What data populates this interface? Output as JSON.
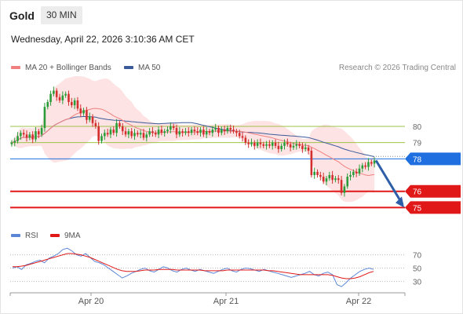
{
  "header": {
    "asset": "Gold",
    "timeframe": "30 MIN",
    "timestamp": "Wednesday, April 22, 2026 3:10:36 AM CET"
  },
  "legend": {
    "ma20_label": "MA 20 + Bollinger Bands",
    "ma50_label": "MA 50",
    "credit": "Research © 2026 Trading Central",
    "rsi_label": "RSI",
    "rsi_ma_label": "9MA"
  },
  "colors": {
    "candle_up": "#2a9d3a",
    "candle_down": "#d32f2f",
    "ma20": "#f08080",
    "bollinger_fill": "#fde0e0",
    "ma50": "#3a5a9a",
    "pivot": "#1f6fe0",
    "support": "#e01818",
    "resistance": "#9fc24a",
    "arrow": "#2e5ea8",
    "rsi": "#5b86d6",
    "rsi_ma": "#e01818"
  },
  "chart_data": [
    {
      "type": "candlestick",
      "x_labels": [
        "Apr 20",
        "Apr 21",
        "Apr 22"
      ],
      "ylim": [
        74.1,
        82.9
      ],
      "levels": [
        {
          "label": "80",
          "value": 80,
          "kind": "resistance"
        },
        {
          "label": "79",
          "value": 79,
          "kind": "resistance"
        },
        {
          "label": "78",
          "value": 78,
          "kind": "pivot"
        },
        {
          "label": "76",
          "value": 76,
          "kind": "support"
        },
        {
          "label": "75",
          "value": 75,
          "kind": "support"
        }
      ],
      "close_approx": [
        79.0,
        79.1,
        79.4,
        79.6,
        79.5,
        79.3,
        79.5,
        79.2,
        79.7,
        79.5,
        79.9,
        81.2,
        81.5,
        82.0,
        82.2,
        81.8,
        81.6,
        81.9,
        82.0,
        81.5,
        81.3,
        81.6,
        81.1,
        80.8,
        81.0,
        80.4,
        80.6,
        80.2,
        80.0,
        79.1,
        79.4,
        79.6,
        79.5,
        79.8,
        79.6,
        80.2,
        80.0,
        79.7,
        79.5,
        79.7,
        79.4,
        79.6,
        79.5,
        79.6,
        79.3,
        79.5,
        79.7,
        79.6,
        79.5,
        79.8,
        79.6,
        79.7,
        79.8,
        80.0,
        79.9,
        79.5,
        79.7,
        79.6,
        79.7,
        79.6,
        79.8,
        79.7,
        79.6,
        79.8,
        79.5,
        79.7,
        79.6,
        79.8,
        79.9,
        79.6,
        79.8,
        79.7,
        79.9,
        79.8,
        79.7,
        79.6,
        79.4,
        79.3,
        79.0,
        78.9,
        79.0,
        78.8,
        79.0,
        78.9,
        78.8,
        78.9,
        78.8,
        79.0,
        78.8,
        78.6,
        78.8,
        79.0,
        78.9,
        78.7,
        78.8,
        78.9,
        78.8,
        78.6,
        78.7,
        78.5,
        77.0,
        77.2,
        77.0,
        76.9,
        76.6,
        76.8,
        77.0,
        76.7,
        76.8,
        76.7,
        75.9,
        76.3,
        76.9,
        77.0,
        77.2,
        77.1,
        77.4,
        77.6,
        77.5,
        77.8,
        77.7,
        77.9
      ],
      "projection": {
        "from": 77.9,
        "to": 75.0
      }
    },
    {
      "type": "line",
      "name": "RSI",
      "ylim": [
        15,
        85
      ],
      "levels": [
        {
          "label": "70",
          "value": 70
        },
        {
          "label": "50",
          "value": 50
        },
        {
          "label": "30",
          "value": 30
        }
      ],
      "series": [
        {
          "name": "RSI",
          "values": [
            50,
            52,
            48,
            55,
            57,
            60,
            62,
            58,
            65,
            68,
            72,
            78,
            80,
            76,
            70,
            68,
            72,
            66,
            60,
            58,
            55,
            50,
            45,
            40,
            35,
            38,
            42,
            45,
            48,
            50,
            46,
            44,
            48,
            52,
            50,
            46,
            44,
            48,
            50,
            47,
            45,
            48,
            46,
            44,
            42,
            45,
            48,
            50,
            46,
            44,
            48,
            50,
            49,
            47,
            45,
            48,
            46,
            44,
            42,
            40,
            38,
            36,
            38,
            40,
            42,
            45,
            40,
            38,
            42,
            44,
            40,
            25,
            22,
            28,
            35,
            40,
            45,
            48,
            50,
            48
          ]
        },
        {
          "name": "9MA",
          "values": [
            52,
            52,
            53,
            54,
            56,
            58,
            60,
            62,
            64,
            66,
            68,
            70,
            72,
            72,
            71,
            70,
            68,
            66,
            63,
            60,
            57,
            54,
            51,
            48,
            46,
            45,
            45,
            45,
            46,
            47,
            47,
            47,
            48,
            48,
            48,
            48,
            47,
            47,
            47,
            47,
            47,
            47,
            46,
            46,
            46,
            46,
            46,
            47,
            47,
            47,
            47,
            47,
            47,
            47,
            47,
            47,
            46,
            46,
            45,
            44,
            43,
            42,
            41,
            40,
            40,
            40,
            40,
            40,
            40,
            40,
            39,
            37,
            35,
            34,
            34,
            35,
            37,
            40,
            43,
            45
          ]
        }
      ]
    }
  ]
}
